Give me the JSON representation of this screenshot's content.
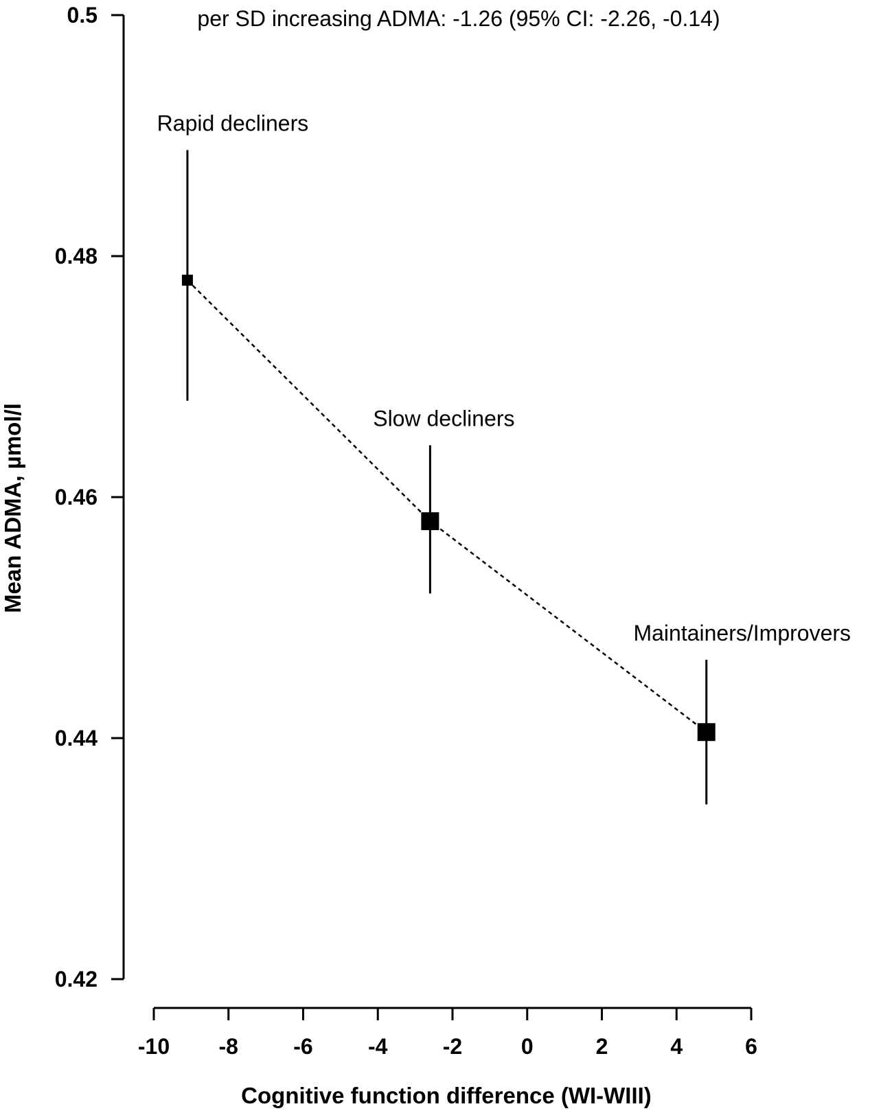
{
  "chart_data": {
    "type": "scatter",
    "annotation": "per SD increasing ADMA: -1.26 (95% CI: -2.26, -0.14)",
    "xlabel": "Cognitive function difference (WI-WIII)",
    "ylabel": "Mean ADMA, µmol/l",
    "xlim": [
      -10,
      6
    ],
    "ylim": [
      0.42,
      0.5
    ],
    "xticks": [
      "-10",
      "-8",
      "-6",
      "-4",
      "-2",
      "0",
      "2",
      "4",
      "6"
    ],
    "yticks": [
      "0.42",
      "0.44",
      "0.46",
      "0.48",
      "0.5"
    ],
    "grid": false,
    "connector": "dotted line",
    "points": [
      {
        "label": "Rapid decliners",
        "x": -9.1,
        "y": 0.478,
        "ci_low": 0.468,
        "ci_high": 0.4888
      },
      {
        "label": "Slow decliners",
        "x": -2.6,
        "y": 0.458,
        "ci_low": 0.452,
        "ci_high": 0.4643
      },
      {
        "label": "Maintainers/Improvers",
        "x": 4.8,
        "y": 0.4405,
        "ci_low": 0.4345,
        "ci_high": 0.4465
      }
    ]
  }
}
